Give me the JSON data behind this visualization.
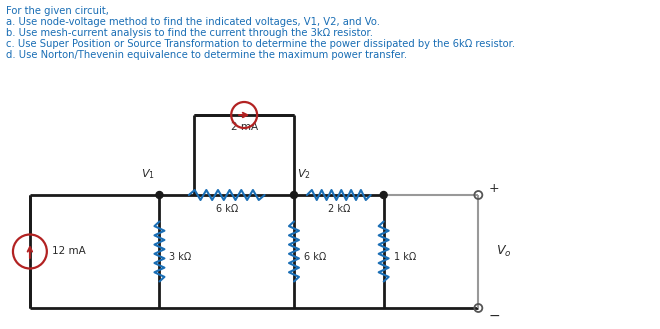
{
  "text_lines": [
    "For the given circuit,",
    "a. Use node-voltage method to find the indicated voltages, V1, V2, and Vo.",
    "b. Use mesh-current analysis to find the current through the 3kΩ resistor.",
    "c. Use Super Position or Source Transformation to determine the power dissipated by the 6kΩ resistor.",
    "d. Use Norton/Thevenin equivalence to determine the maximum power transfer."
  ],
  "wire_color": "#1a1a1a",
  "resistor_color": "#1a6eb5",
  "source_color": "#b22222",
  "bg_color": "#ffffff",
  "text_color": "#1a6eb5",
  "label_color": "#2a2a2a",
  "gray_wire": "#999999"
}
